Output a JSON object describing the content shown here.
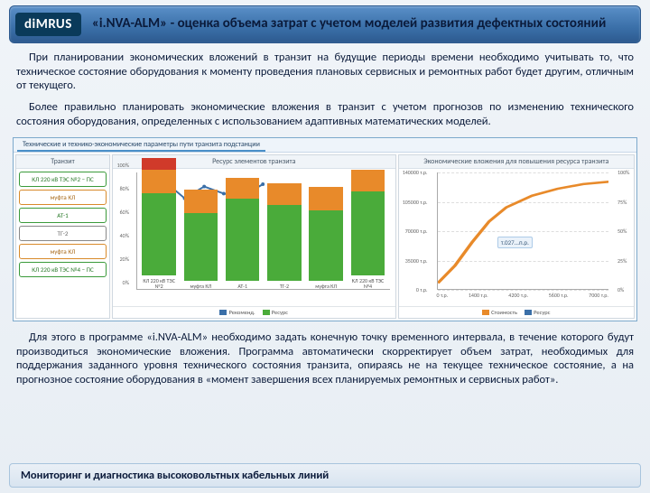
{
  "header": {
    "logo": "diMRUS",
    "title": "«i.NVA-ALM» - оценка объема затрат с учетом моделей развития дефектных состояний"
  },
  "para1": "При планировании экономических вложений в транзит на будущие периоды времени необходимо учитывать то, что техническое состояние оборудования к моменту проведения плановых сервисных и ремонтных работ будет другим, отличным от текущего.",
  "para2": "Более правильно планировать экономические вложения в транзит с учетом прогнозов по изменению технического состояния оборудования, определенных с использованием адаптивных математических моделей.",
  "para3": "Для этого в программе «i.NVA-ALM» необходимо задать конечную точку временного интервала, в течение которого будут производиться экономические вложения. Программа автоматически скорректирует объем затрат, необходимых для поддержания заданного уровня технического состояния транзита, опираясь не на текущее техническое состояние, а на прогнозное состояние оборудования в «момент завершения всех планируемых ремонтных и сервисных работ».",
  "footer": "Мониторинг и диагностика высоковольтных кабельных линий",
  "chart": {
    "tab": "Технические и технико-экономические параметры пути транзита подстанции",
    "left": {
      "title": "Транзит",
      "items": [
        {
          "label": "КЛ 220 кВ ТЭС №2 – ПС",
          "cls": "ti-green"
        },
        {
          "label": "муфта КЛ",
          "cls": "ti-orange"
        },
        {
          "label": "АТ-1",
          "cls": "ti-green"
        },
        {
          "label": "ТГ-2",
          "cls": "ti-gray"
        },
        {
          "label": "муфта КЛ",
          "cls": "ti-orange"
        },
        {
          "label": "КЛ 220 кВ ТЭС №4 – ПС",
          "cls": "ti-green"
        }
      ]
    },
    "mid": {
      "title": "Ресурс элементов транзита",
      "ylim": [
        0,
        100
      ],
      "yticks": [
        0,
        20,
        40,
        60,
        80,
        100
      ],
      "colors": {
        "green": "#4aab3a",
        "orange": "#e88a2a",
        "red": "#d03a2a"
      },
      "line_color": "#3a6fa8",
      "bars": [
        {
          "xlabel": "КЛ 220 кВ ТЭС №2",
          "segs": [
            {
              "c": "green",
              "h": 70
            },
            {
              "c": "orange",
              "h": 20
            },
            {
              "c": "red",
              "h": 10
            }
          ],
          "line": 92
        },
        {
          "xlabel": "муфта КЛ",
          "segs": [
            {
              "c": "green",
              "h": 58
            },
            {
              "c": "orange",
              "h": 20
            }
          ],
          "line": 78
        },
        {
          "xlabel": "АТ-1",
          "segs": [
            {
              "c": "green",
              "h": 70
            },
            {
              "c": "orange",
              "h": 18
            }
          ],
          "line": 88
        },
        {
          "xlabel": "ТГ-2",
          "segs": [
            {
              "c": "green",
              "h": 65
            },
            {
              "c": "orange",
              "h": 18
            }
          ],
          "line": 82
        },
        {
          "xlabel": "муфта КЛ",
          "segs": [
            {
              "c": "green",
              "h": 60
            },
            {
              "c": "orange",
              "h": 20
            }
          ],
          "line": 80
        },
        {
          "xlabel": "КЛ 220 кВ ТЭС №4",
          "segs": [
            {
              "c": "green",
              "h": 72
            },
            {
              "c": "orange",
              "h": 18
            }
          ],
          "line": 90
        }
      ],
      "legend": [
        {
          "label": "Рекоменд.",
          "color": "#3a6fa8"
        },
        {
          "label": "Ресурс",
          "color": "#4aab3a"
        }
      ]
    },
    "right": {
      "title": "Экономические вложения для повышения ресурса транзита",
      "yl_ticks": [
        "140000 т.р.",
        "105000 т.р.",
        "70000 т.р.",
        "35000 т.р.",
        "0 т.р."
      ],
      "yr_ticks": [
        "100%",
        "75%",
        "50%",
        "25%",
        "0%"
      ],
      "x_ticks": [
        "0 т.р.",
        "1400 т.р.",
        "4200 т.р.",
        "5600 т.р.",
        "7000 т.р."
      ],
      "line_color": "#e88a2a",
      "curve": [
        [
          0,
          5
        ],
        [
          10,
          20
        ],
        [
          20,
          40
        ],
        [
          30,
          58
        ],
        [
          40,
          70
        ],
        [
          55,
          80
        ],
        [
          70,
          86
        ],
        [
          85,
          90
        ],
        [
          100,
          92
        ]
      ],
      "callout": "т.027...п.р.",
      "legend": [
        {
          "label": "Стоимость",
          "color": "#e88a2a"
        },
        {
          "label": "Ресурс",
          "color": "#3a6fa8"
        }
      ]
    }
  }
}
